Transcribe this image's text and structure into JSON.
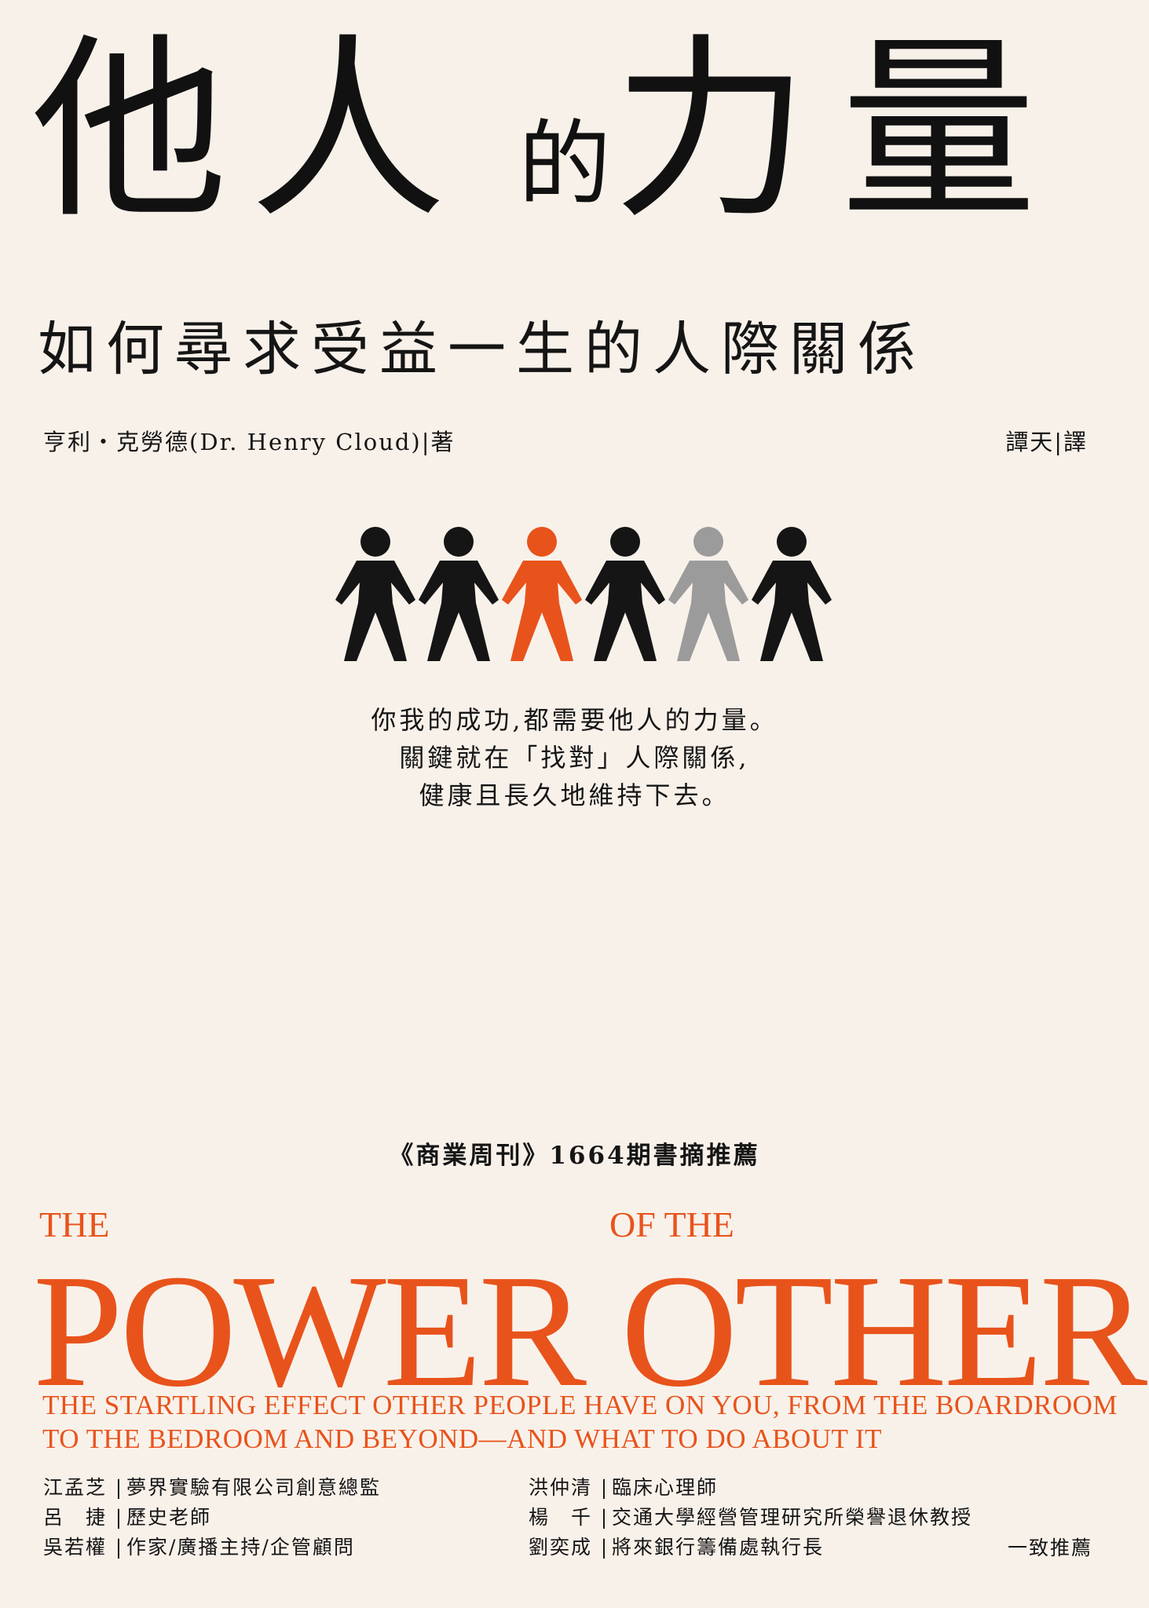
{
  "title": {
    "chars": [
      "他",
      "人",
      "的",
      "力",
      "量"
    ]
  },
  "subtitle": "如何尋求受益一生的人際關係",
  "author_line": "亨利・克勞德(Dr. Henry Cloud)|著",
  "translator_line": "譚天|譯",
  "figures": {
    "count": 6,
    "colors": [
      "#151515",
      "#151515",
      "#e8531b",
      "#151515",
      "#9b9b9b",
      "#151515"
    ]
  },
  "blurb": [
    "你我的成功,都需要他人的力量。",
    "關鍵就在「找對」人際關係,",
    "健康且長久地維持下去。"
  ],
  "recommend": "《商業周刊》1664期書摘推薦",
  "english": {
    "the": "THE",
    "of_the": "OF THE",
    "main": "POWER OTHER",
    "subtitle_line1": "THE STARTLING EFFECT OTHER PEOPLE HAVE ON YOU, FROM THE BOARDROOM",
    "subtitle_line2": "TO THE BEDROOM AND BEYOND—AND WHAT TO DO ABOUT IT",
    "accent_color": "#e8531b"
  },
  "endorsers_left": [
    {
      "name": "江孟芝",
      "title": "夢界實驗有限公司創意總監"
    },
    {
      "name": "呂　捷",
      "title": "歷史老師"
    },
    {
      "name": "吳若權",
      "title": "作家/廣播主持/企管顧問"
    }
  ],
  "endorsers_right": [
    {
      "name": "洪仲清",
      "title": "臨床心理師"
    },
    {
      "name": "楊　千",
      "title": "交通大學經營管理研究所榮譽退休教授"
    },
    {
      "name": "劉奕成",
      "title": "將來銀行籌備處執行長"
    }
  ],
  "unanimous": "一致推薦"
}
